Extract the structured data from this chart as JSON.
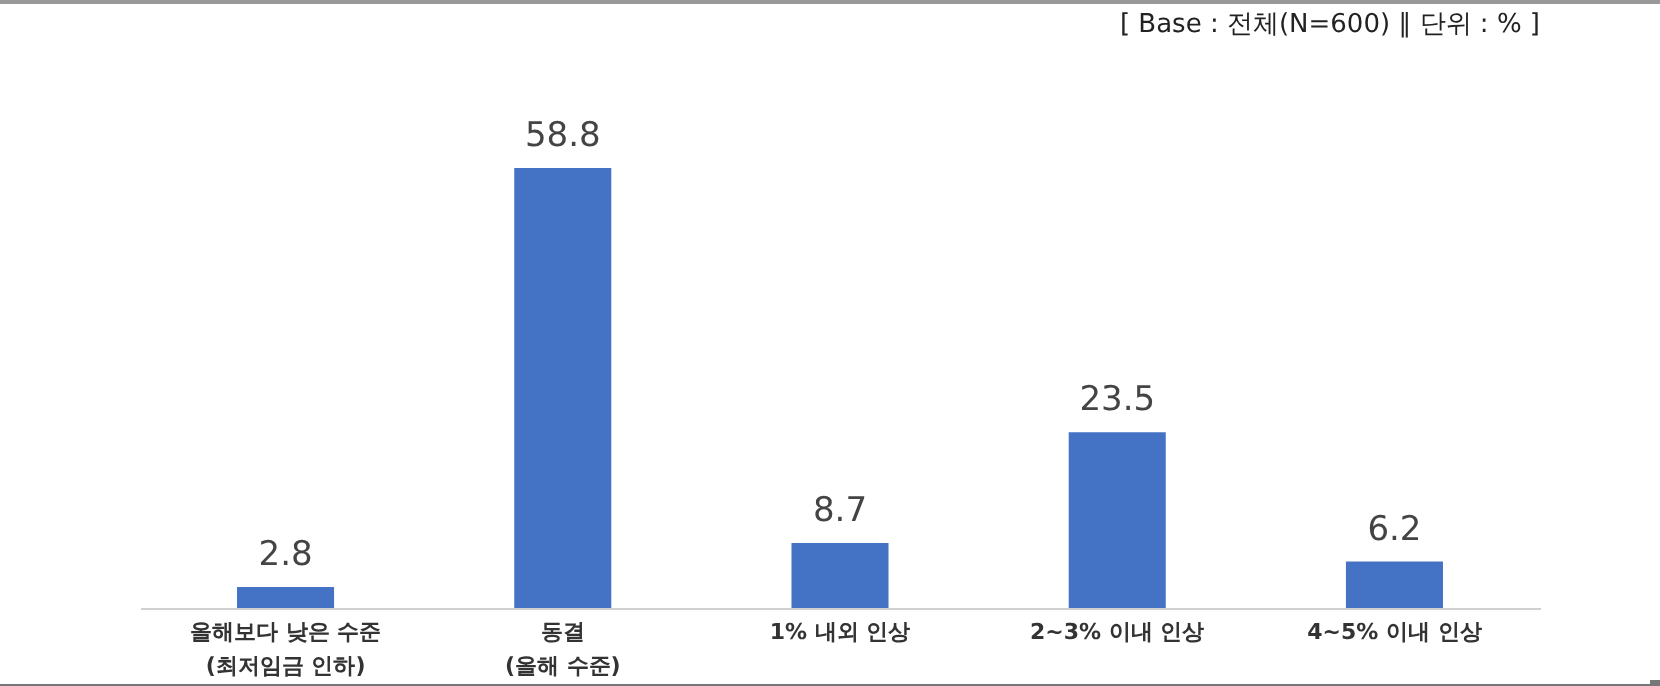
{
  "chart_data": {
    "type": "bar",
    "subtitle": "[ Base : 전체(N=600) ∥ 단위 : % ]",
    "categories": [
      "올해보다 낮은 수준\n(최저임금 인하)",
      "동결\n(올해 수준)",
      "1% 내외 인상",
      "2~3% 이내 인상",
      "4~5% 이내 인상"
    ],
    "values": [
      2.8,
      58.8,
      8.7,
      23.5,
      6.2
    ],
    "color": "#4472c4",
    "data_labels": true
  }
}
